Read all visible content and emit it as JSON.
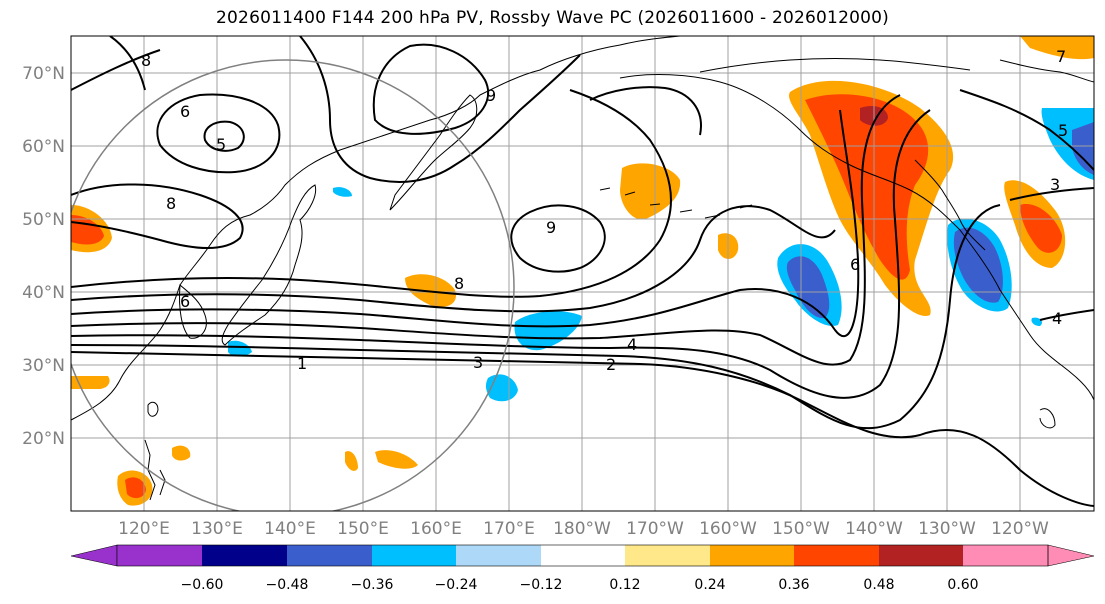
{
  "title": "2026011400 F144 200 hPa PV, Rossby Wave PC (2026011600 - 2026012000)",
  "map": {
    "projection": "equirectangular",
    "lon_range_east": [
      110,
      250
    ],
    "lat_range": [
      10,
      75
    ],
    "lat_ticks": [
      "20°N",
      "30°N",
      "40°N",
      "50°N",
      "60°N",
      "70°N"
    ],
    "lon_ticks": [
      "120°E",
      "130°E",
      "140°E",
      "150°E",
      "160°E",
      "170°E",
      "180°W",
      "170°W",
      "160°W",
      "150°W",
      "140°W",
      "130°W",
      "120°W"
    ],
    "grid": true,
    "colors": {
      "grid": "#a0a0a0",
      "tick_labels": "#808080",
      "contours": "#000000",
      "circle": "#808080"
    }
  },
  "contour_labels": [
    "8",
    "6",
    "5",
    "9",
    "8",
    "6",
    "9",
    "8",
    "1",
    "3",
    "2",
    "4",
    "6",
    "3",
    "4",
    "5",
    "7"
  ],
  "colorbar": {
    "ticks": [
      "−0.60",
      "−0.48",
      "−0.36",
      "−0.24",
      "−0.12",
      "0.12",
      "0.24",
      "0.36",
      "0.48",
      "0.60"
    ],
    "colors": [
      "#9932cc",
      "#00008b",
      "#3a5fcd",
      "#00bfff",
      "#add8f7",
      "#ffffff",
      "#ffe88a",
      "#ffa500",
      "#ff4500",
      "#b22222",
      "#ff8cb4"
    ]
  },
  "anomalies": [
    {
      "sign": "positive",
      "level": "0.36",
      "color": "#ff4500"
    },
    {
      "sign": "positive",
      "level": "0.24",
      "color": "#ffa500"
    },
    {
      "sign": "negative",
      "level": "-0.36",
      "color": "#3a5fcd"
    },
    {
      "sign": "negative",
      "level": "-0.24",
      "color": "#00bfff"
    }
  ]
}
